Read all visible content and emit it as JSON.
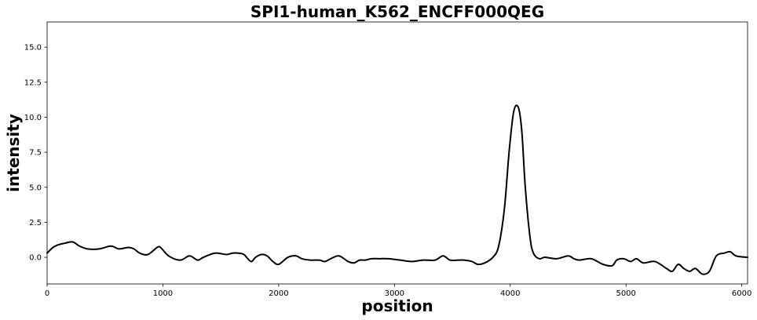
{
  "chart_data": {
    "type": "line",
    "title": "SPI1-human_K562_ENCFF000QEG",
    "xlabel": "position",
    "ylabel": "intensity",
    "xlim": [
      0,
      6050
    ],
    "ylim": [
      -1.9,
      16.8
    ],
    "xticks": [
      0,
      1000,
      2000,
      3000,
      4000,
      5000,
      6000
    ],
    "xtick_labels": [
      "0",
      "1000",
      "2000",
      "3000",
      "4000",
      "5000",
      "6000"
    ],
    "yticks": [
      0.0,
      2.5,
      5.0,
      7.5,
      10.0,
      12.5,
      15.0
    ],
    "ytick_labels": [
      "0.0",
      "2.5",
      "5.0",
      "7.5",
      "10.0",
      "12.5",
      "15.0"
    ],
    "grid": false,
    "series": [
      {
        "color": "#000000",
        "x": [
          0,
          50,
          100,
          150,
          220,
          280,
          350,
          450,
          550,
          620,
          700,
          750,
          800,
          870,
          950,
          980,
          1050,
          1150,
          1230,
          1300,
          1350,
          1450,
          1550,
          1600,
          1650,
          1700,
          1760,
          1800,
          1850,
          1900,
          1950,
          2000,
          2080,
          2150,
          2200,
          2270,
          2350,
          2400,
          2450,
          2520,
          2600,
          2650,
          2700,
          2750,
          2800,
          2870,
          2950,
          3050,
          3150,
          3250,
          3350,
          3420,
          3480,
          3550,
          3600,
          3670,
          3720,
          3780,
          3850,
          3900,
          3950,
          3990,
          4030,
          4070,
          4100,
          4130,
          4170,
          4200,
          4250,
          4300,
          4400,
          4500,
          4550,
          4600,
          4700,
          4800,
          4880,
          4920,
          4980,
          5040,
          5090,
          5150,
          5250,
          5350,
          5400,
          5450,
          5500,
          5550,
          5600,
          5660,
          5720,
          5780,
          5850,
          5900,
          5950,
          6050
        ],
        "y": [
          0.3,
          0.7,
          0.9,
          1.0,
          1.1,
          0.8,
          0.6,
          0.6,
          0.8,
          0.6,
          0.7,
          0.6,
          0.3,
          0.2,
          0.7,
          0.7,
          0.1,
          -0.2,
          0.1,
          -0.2,
          0.0,
          0.3,
          0.2,
          0.3,
          0.3,
          0.2,
          -0.3,
          0.0,
          0.2,
          0.1,
          -0.3,
          -0.5,
          0.0,
          0.1,
          -0.1,
          -0.2,
          -0.2,
          -0.3,
          -0.1,
          0.1,
          -0.3,
          -0.4,
          -0.2,
          -0.2,
          -0.1,
          -0.1,
          -0.1,
          -0.2,
          -0.3,
          -0.2,
          -0.2,
          0.1,
          -0.2,
          -0.2,
          -0.2,
          -0.3,
          -0.5,
          -0.4,
          0.0,
          0.8,
          3.5,
          7.5,
          10.4,
          10.7,
          9.0,
          5.0,
          1.5,
          0.3,
          -0.1,
          0.0,
          -0.1,
          0.1,
          -0.1,
          -0.2,
          -0.1,
          -0.5,
          -0.6,
          -0.2,
          -0.1,
          -0.3,
          -0.1,
          -0.4,
          -0.3,
          -0.8,
          -1.0,
          -0.5,
          -0.8,
          -1.0,
          -0.8,
          -1.2,
          -1.0,
          0.1,
          0.3,
          0.4,
          0.1,
          0.0
        ]
      }
    ]
  }
}
